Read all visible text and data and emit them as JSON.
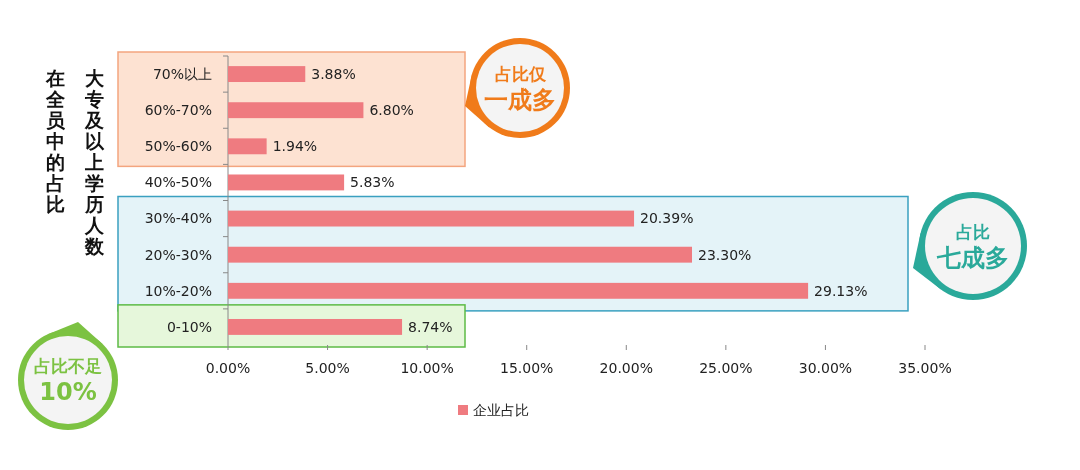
{
  "chart_data": {
    "type": "bar",
    "orientation": "horizontal",
    "ylabel": "大专及以上学历人数在全员中的占比",
    "categories": [
      "70%以上",
      "60%-70%",
      "50%-60%",
      "40%-50%",
      "30%-40%",
      "20%-30%",
      "10%-20%",
      "0-10%"
    ],
    "series": [
      {
        "name": "企业占比",
        "color": "#ef7b80",
        "values": [
          3.88,
          6.8,
          1.94,
          5.83,
          20.39,
          23.3,
          29.13,
          8.74
        ],
        "value_labels": [
          "3.88%",
          "6.80%",
          "1.94%",
          "5.83%",
          "20.39%",
          "23.30%",
          "29.13%",
          "8.74%"
        ]
      }
    ],
    "xlim": [
      0,
      35
    ],
    "xticks": [
      {
        "value": 0,
        "label": "0.00%"
      },
      {
        "value": 5,
        "label": "5.00%"
      },
      {
        "value": 10,
        "label": "10.00%"
      },
      {
        "value": 15,
        "label": "15.00%"
      },
      {
        "value": 20,
        "label": "20.00%"
      },
      {
        "value": 25,
        "label": "25.00%"
      },
      {
        "value": 30,
        "label": "30.00%"
      },
      {
        "value": 35,
        "label": "35.00%"
      }
    ],
    "bands": [
      {
        "axis": "y",
        "from": "70%以上",
        "to": "50%-60%",
        "label": "占比仅一成多",
        "color": "#fde2d2"
      },
      {
        "axis": "y",
        "from": "30%-40%",
        "to": "10%-20%",
        "label": "占比七成多",
        "color": "#e4f3f8"
      },
      {
        "axis": "y",
        "from": "0-10%",
        "to": "0-10%",
        "label": "占比不足10%",
        "color": "#e6f7db"
      }
    ],
    "legend": "bottom",
    "grid": false
  }
}
